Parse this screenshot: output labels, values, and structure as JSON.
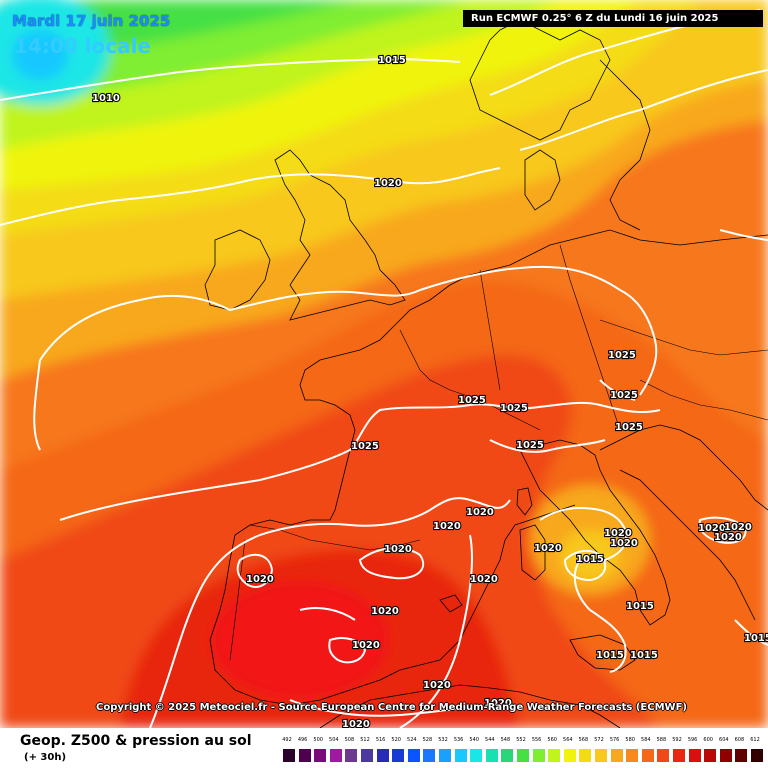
{
  "header": {
    "date_line": "Mardi 17 juin 2025",
    "time_line": "14:00 locale",
    "run_info": "Run ECMWF 0.25° 6 Z du Lundi 16 juin 2025"
  },
  "copyright": "Copyright © 2025 Meteociel.fr - Source European Centre for Medium-Range Weather Forecasts (ECMWF)",
  "footer": {
    "parameter": "Geop. Z500 & pression au sol",
    "step": "(+ 30h)"
  },
  "isobar_labels": [
    {
      "id": "1015-north",
      "text": "1015"
    },
    {
      "id": "1010-atlantic",
      "text": "1010"
    },
    {
      "id": "1020-uk",
      "text": "1020"
    },
    {
      "id": "1025-germany-n",
      "text": "1025"
    },
    {
      "id": "1025-czech",
      "text": "1025"
    },
    {
      "id": "1025-austria",
      "text": "1025"
    },
    {
      "id": "1025-france-e",
      "text": "1025"
    },
    {
      "id": "1025-swiss",
      "text": "1025"
    },
    {
      "id": "1025-alps",
      "text": "1025"
    },
    {
      "id": "1025-france-w",
      "text": "1025"
    },
    {
      "id": "1020-gulf-lion",
      "text": "1020"
    },
    {
      "id": "1020-pyrenees",
      "text": "1020"
    },
    {
      "id": "1020-ebro",
      "text": "1020"
    },
    {
      "id": "1020-portugal",
      "text": "1020"
    },
    {
      "id": "1020-spain-c",
      "text": "1020"
    },
    {
      "id": "1020-spain-s",
      "text": "1020"
    },
    {
      "id": "1020-balearic",
      "text": "1020"
    },
    {
      "id": "1020-italy-c",
      "text": "1020"
    },
    {
      "id": "1020-adriatic-1",
      "text": "1020"
    },
    {
      "id": "1020-adriatic-2",
      "text": "1020"
    },
    {
      "id": "1015-italy",
      "text": "1015"
    },
    {
      "id": "1015-calabria",
      "text": "1015"
    },
    {
      "id": "1015-sicily-w",
      "text": "1015"
    },
    {
      "id": "1015-sicily-e",
      "text": "1015"
    },
    {
      "id": "1020-balkans-1",
      "text": "1020"
    },
    {
      "id": "1020-balkans-2",
      "text": "1020"
    },
    {
      "id": "1020-balkans-3",
      "text": "1020"
    },
    {
      "id": "1015-greece",
      "text": "1015"
    },
    {
      "id": "1020-africa-1",
      "text": "1020"
    },
    {
      "id": "1020-africa-2",
      "text": "1020"
    },
    {
      "id": "1020-africa-3",
      "text": "1020"
    }
  ],
  "color_scale": {
    "labels": [
      "492",
      "496",
      "500",
      "504",
      "508",
      "512",
      "516",
      "520",
      "524",
      "528",
      "532",
      "536",
      "540",
      "544",
      "548",
      "552",
      "556",
      "560",
      "564",
      "568",
      "572",
      "576",
      "580",
      "584",
      "588",
      "592",
      "596",
      "600",
      "604",
      "608",
      "612"
    ],
    "colors": [
      "#2b002b",
      "#4d004d",
      "#7a0a7a",
      "#9e1a9e",
      "#6b3a8c",
      "#4a3aa0",
      "#2a2ab8",
      "#1a3ad6",
      "#0a55ff",
      "#1a78ff",
      "#1aa0ff",
      "#18c8ff",
      "#1ae6e6",
      "#18e0b0",
      "#28d878",
      "#44e044",
      "#80ee30",
      "#c0f41c",
      "#f0f40c",
      "#f4dc14",
      "#f8c81c",
      "#f8a81c",
      "#f8881c",
      "#f46818",
      "#f04818",
      "#e82810",
      "#d81010",
      "#b80808",
      "#900000",
      "#600000",
      "#300000"
    ]
  }
}
